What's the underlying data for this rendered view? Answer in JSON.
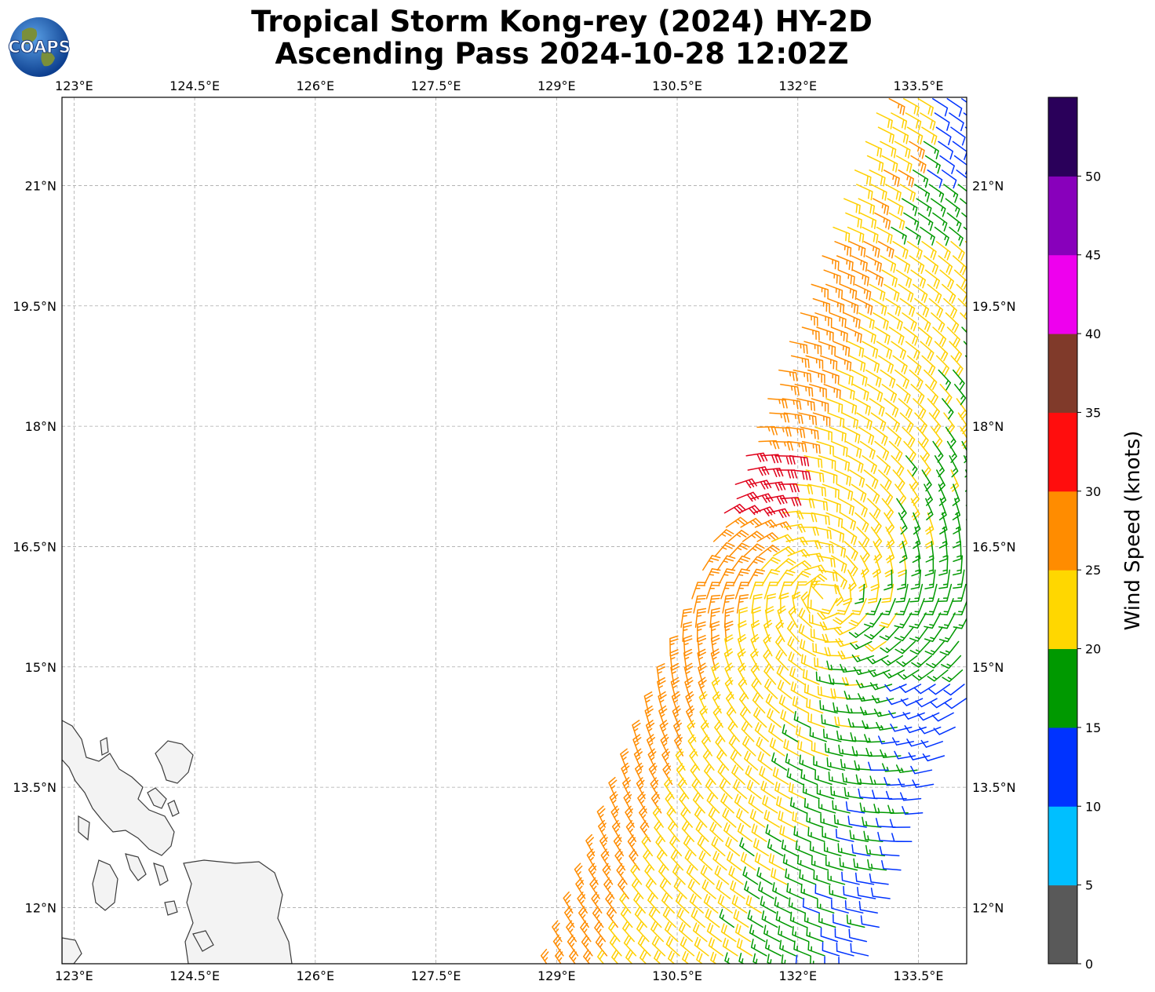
{
  "title": {
    "line1": "Tropical Storm Kong-rey (2024) HY-2D",
    "line2": "Ascending Pass 2024-10-28 12:02Z"
  },
  "logo": {
    "text": "COAPS",
    "icon": "globe-icon"
  },
  "map": {
    "lon_range": [
      122.85,
      134.1
    ],
    "lat_range": [
      11.3,
      22.1
    ],
    "lon_ticks": [
      123,
      124.5,
      126,
      127.5,
      129,
      130.5,
      132,
      133.5
    ],
    "lon_tick_labels": [
      "123°E",
      "124.5°E",
      "126°E",
      "127.5°E",
      "129°E",
      "130.5°E",
      "132°E",
      "133.5°E"
    ],
    "lat_ticks": [
      12,
      13.5,
      15,
      16.5,
      18,
      19.5,
      21
    ],
    "lat_tick_labels": [
      "12°N",
      "13.5°N",
      "15°N",
      "16.5°N",
      "18°N",
      "19.5°N",
      "21°N"
    ],
    "grid": true,
    "land": "Philippines (southwest corner)"
  },
  "colorbar": {
    "label": "Wind Speed (knots)",
    "ticks": [
      "0",
      "5",
      "10",
      "15",
      "20",
      "25",
      "30",
      "35",
      "40",
      "45",
      "50"
    ],
    "colors": [
      "#595959",
      "#00bfff",
      "#0033ff",
      "#009900",
      "#ffd700",
      "#ff8c00",
      "#ff0d0d",
      "#803a2a",
      "#ee00ee",
      "#8800bb",
      "#2a005a"
    ]
  }
}
